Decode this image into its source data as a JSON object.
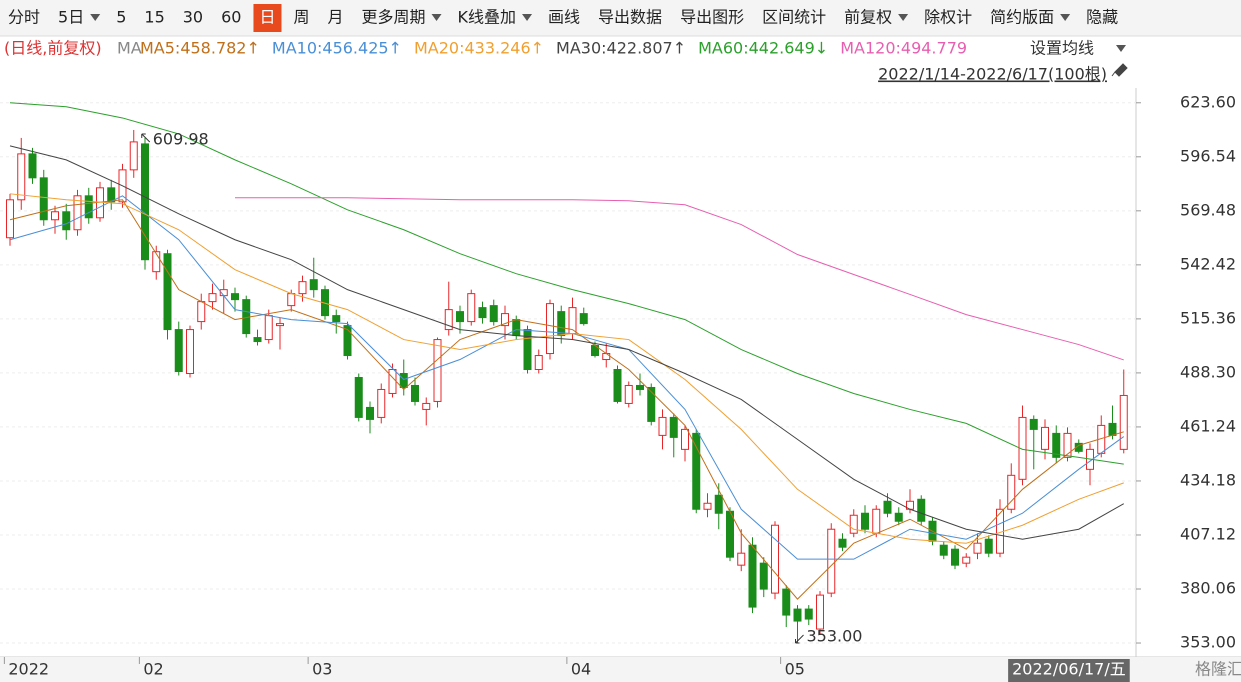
{
  "toolbar": {
    "items": [
      "分时",
      "5日",
      "5",
      "15",
      "30",
      "60",
      "日",
      "周",
      "月",
      "更多周期",
      "K线叠加",
      "画线",
      "导出数据",
      "导出图形",
      "区间统计",
      "前复权",
      "除权计",
      "简约版面",
      "隐藏"
    ],
    "active_index": 6
  },
  "info_bar": {
    "mode": "(日线,前复权)",
    "ma": "MA",
    "settings": "设置均线",
    "range": "2022/1/14-2022/6/17(100根)"
  },
  "watermark": "格隆汇",
  "chart_data": {
    "type": "candlestick",
    "categories": [
      "2022",
      null,
      null,
      null,
      null,
      null,
      null,
      null,
      null,
      null,
      null,
      null,
      "02",
      null,
      null,
      null,
      null,
      null,
      null,
      null,
      null,
      null,
      null,
      null,
      null,
      null,
      null,
      "03",
      null,
      null,
      null,
      null,
      null,
      null,
      null,
      null,
      null,
      null,
      null,
      null,
      null,
      null,
      null,
      null,
      null,
      null,
      null,
      null,
      null,
      null,
      "04",
      null,
      null,
      null,
      null,
      null,
      null,
      null,
      null,
      null,
      null,
      null,
      null,
      null,
      null,
      null,
      null,
      null,
      null,
      "05",
      null,
      null,
      null,
      null,
      null,
      null,
      null,
      null,
      null,
      null,
      null,
      null,
      null,
      null,
      null,
      null,
      null,
      null,
      null,
      null,
      null,
      null,
      null,
      null,
      null,
      null,
      null,
      null,
      null,
      "2022/06/17/五"
    ],
    "ohlc": [
      [
        556,
        578,
        552,
        575
      ],
      [
        575,
        606,
        570,
        598
      ],
      [
        598,
        601,
        583,
        586
      ],
      [
        586,
        590,
        562,
        565
      ],
      [
        565,
        572,
        558,
        569
      ],
      [
        569,
        573,
        555,
        560
      ],
      [
        560,
        580,
        557,
        577
      ],
      [
        577,
        581,
        563,
        566
      ],
      [
        566,
        584,
        564,
        581
      ],
      [
        581,
        585,
        570,
        574
      ],
      [
        574,
        593,
        571,
        590
      ],
      [
        590,
        609.98,
        586,
        604
      ],
      [
        603,
        606,
        540,
        545
      ],
      [
        539,
        552,
        535,
        549
      ],
      [
        548,
        550,
        505,
        510
      ],
      [
        510,
        514,
        487,
        489
      ],
      [
        488,
        512,
        486,
        510
      ],
      [
        514,
        528,
        510,
        524
      ],
      [
        524,
        533,
        520,
        528
      ],
      [
        527,
        535,
        518,
        530
      ],
      [
        528,
        531,
        519,
        525
      ],
      [
        525,
        527,
        506,
        508
      ],
      [
        506,
        510,
        502,
        504
      ],
      [
        505,
        520,
        503,
        517
      ],
      [
        512,
        516,
        500,
        513
      ],
      [
        522,
        530,
        519,
        528
      ],
      [
        528,
        537,
        524,
        534
      ],
      [
        535,
        546,
        526,
        530
      ],
      [
        530,
        532,
        515,
        517
      ],
      [
        517,
        520,
        508,
        514
      ],
      [
        512,
        514,
        495,
        497
      ],
      [
        486,
        488,
        464,
        466
      ],
      [
        471,
        474,
        458,
        465
      ],
      [
        466,
        483,
        463,
        480
      ],
      [
        478,
        493,
        476,
        490
      ],
      [
        488,
        495,
        477,
        481
      ],
      [
        482,
        486,
        472,
        474
      ],
      [
        470,
        476,
        462,
        473
      ],
      [
        474,
        506,
        471,
        505
      ],
      [
        510,
        534,
        507,
        520
      ],
      [
        519,
        522,
        508,
        514
      ],
      [
        514,
        530,
        512,
        528
      ],
      [
        521,
        524,
        513,
        516
      ],
      [
        522,
        525,
        512,
        514
      ],
      [
        512,
        522,
        505,
        518
      ],
      [
        515,
        517,
        505,
        507
      ],
      [
        510,
        512,
        488,
        490
      ],
      [
        490,
        500,
        488,
        497
      ],
      [
        498,
        525,
        495,
        523
      ],
      [
        519,
        522,
        503,
        507
      ],
      [
        508,
        526,
        505,
        521
      ],
      [
        518,
        521,
        512,
        513
      ],
      [
        502,
        504,
        496,
        497
      ],
      [
        495,
        503,
        491,
        498
      ],
      [
        490,
        492,
        473,
        474
      ],
      [
        473,
        484,
        471,
        482
      ],
      [
        482,
        488,
        477,
        480
      ],
      [
        481,
        483,
        462,
        464
      ],
      [
        457,
        470,
        450,
        466
      ],
      [
        466,
        468,
        446,
        456
      ],
      [
        450,
        462,
        444,
        460
      ],
      [
        458,
        460,
        418,
        420
      ],
      [
        420,
        428,
        416,
        423
      ],
      [
        427,
        433,
        410,
        418
      ],
      [
        419,
        421,
        394,
        396
      ],
      [
        392,
        410,
        389,
        398
      ],
      [
        402,
        406,
        368,
        371
      ],
      [
        393,
        396,
        376,
        380
      ],
      [
        378,
        414,
        375,
        412
      ],
      [
        380,
        382,
        361,
        367
      ],
      [
        370,
        372,
        353,
        364
      ],
      [
        370,
        372,
        362,
        365
      ],
      [
        360,
        379,
        357,
        377
      ],
      [
        378,
        413,
        376,
        410
      ],
      [
        405,
        408,
        399,
        401
      ],
      [
        408,
        420,
        406,
        417
      ],
      [
        418,
        422,
        408,
        410
      ],
      [
        408,
        422,
        406,
        420
      ],
      [
        424,
        428,
        416,
        418
      ],
      [
        418,
        421,
        412,
        414
      ],
      [
        420,
        430,
        418,
        424
      ],
      [
        425,
        427,
        412,
        414
      ],
      [
        414,
        416,
        402,
        404
      ],
      [
        402,
        404,
        395,
        397
      ],
      [
        400,
        402,
        390,
        392
      ],
      [
        393,
        398,
        391,
        396
      ],
      [
        398,
        408,
        395,
        403
      ],
      [
        405,
        407,
        396,
        398
      ],
      [
        398,
        425,
        396,
        420
      ],
      [
        420,
        443,
        418,
        437
      ],
      [
        435,
        472,
        432,
        466
      ],
      [
        465,
        467,
        440,
        460
      ],
      [
        450,
        465,
        445,
        461
      ],
      [
        458,
        462,
        443,
        446
      ],
      [
        446,
        461,
        444,
        458
      ],
      [
        453,
        455,
        448,
        449
      ],
      [
        440,
        453,
        432,
        450
      ],
      [
        448,
        467,
        446,
        462
      ],
      [
        463,
        472,
        455,
        457
      ],
      [
        450,
        490,
        448,
        477
      ]
    ],
    "up_color": "#e8262a",
    "down_color": "#1a8c1a",
    "ma_x": [
      0,
      5,
      10,
      15,
      20,
      25,
      30,
      35,
      40,
      45,
      50,
      55,
      60,
      65,
      70,
      75,
      80,
      85,
      90,
      95,
      99
    ],
    "ma_series": [
      {
        "name": "MA5:458.782↑",
        "color": "#c0701a",
        "values": [
          565,
          572,
          575,
          530,
          515,
          520,
          510,
          480,
          505,
          515,
          510,
          490,
          462,
          408,
          375,
          403,
          415,
          400,
          430,
          452,
          458.8
        ]
      },
      {
        "name": "MA10:456.425↑",
        "color": "#4a8fd6",
        "values": [
          555,
          563,
          577,
          555,
          520,
          515,
          513,
          485,
          495,
          510,
          508,
          500,
          470,
          420,
          395,
          395,
          410,
          405,
          418,
          440,
          456.4
        ]
      },
      {
        "name": "MA20:433.246↑",
        "color": "#f0a030",
        "values": [
          578,
          575,
          573,
          560,
          540,
          528,
          520,
          505,
          500,
          505,
          508,
          505,
          485,
          460,
          430,
          410,
          405,
          403,
          412,
          425,
          433.2
        ]
      },
      {
        "name": "MA30:422.807↑",
        "color": "#444444",
        "values": [
          602,
          595,
          582,
          568,
          555,
          545,
          530,
          520,
          510,
          507,
          505,
          500,
          488,
          475,
          455,
          435,
          420,
          410,
          405,
          410,
          422.8
        ]
      },
      {
        "name": "MA60:442.649↓",
        "color": "#2ca02c",
        "values": [
          623.6,
          621.6,
          616,
          608,
          595,
          583,
          570,
          560,
          548,
          538,
          530,
          523,
          515,
          500,
          488,
          478,
          470,
          463,
          450,
          446,
          442.6
        ]
      },
      {
        "name": "MA120:494.779",
        "color": "#e75fb0",
        "values": [
          null,
          null,
          null,
          null,
          576,
          576,
          576,
          575.5,
          575,
          575,
          575,
          574.5,
          572.5,
          562.6,
          547.6,
          537.6,
          527.6,
          517.5,
          510,
          502.5,
          494.8
        ]
      }
    ],
    "high_label": "609.98",
    "low_label": "353.00",
    "ylim": [
      346,
      631
    ],
    "yticks": [
      {
        "value": 623.6,
        "label": "623.60"
      },
      {
        "value": 596.54,
        "label": "596.54"
      },
      {
        "value": 569.48,
        "label": "569.48"
      },
      {
        "value": 542.42,
        "label": "542.42"
      },
      {
        "value": 515.36,
        "label": "515.36"
      },
      {
        "value": 488.3,
        "label": "488.30"
      },
      {
        "value": 461.24,
        "label": "461.24"
      },
      {
        "value": 434.18,
        "label": "434.18"
      },
      {
        "value": 407.12,
        "label": "407.12"
      },
      {
        "value": 380.06,
        "label": "380.06"
      },
      {
        "value": 353,
        "label": "353.00"
      }
    ],
    "grid": true
  }
}
